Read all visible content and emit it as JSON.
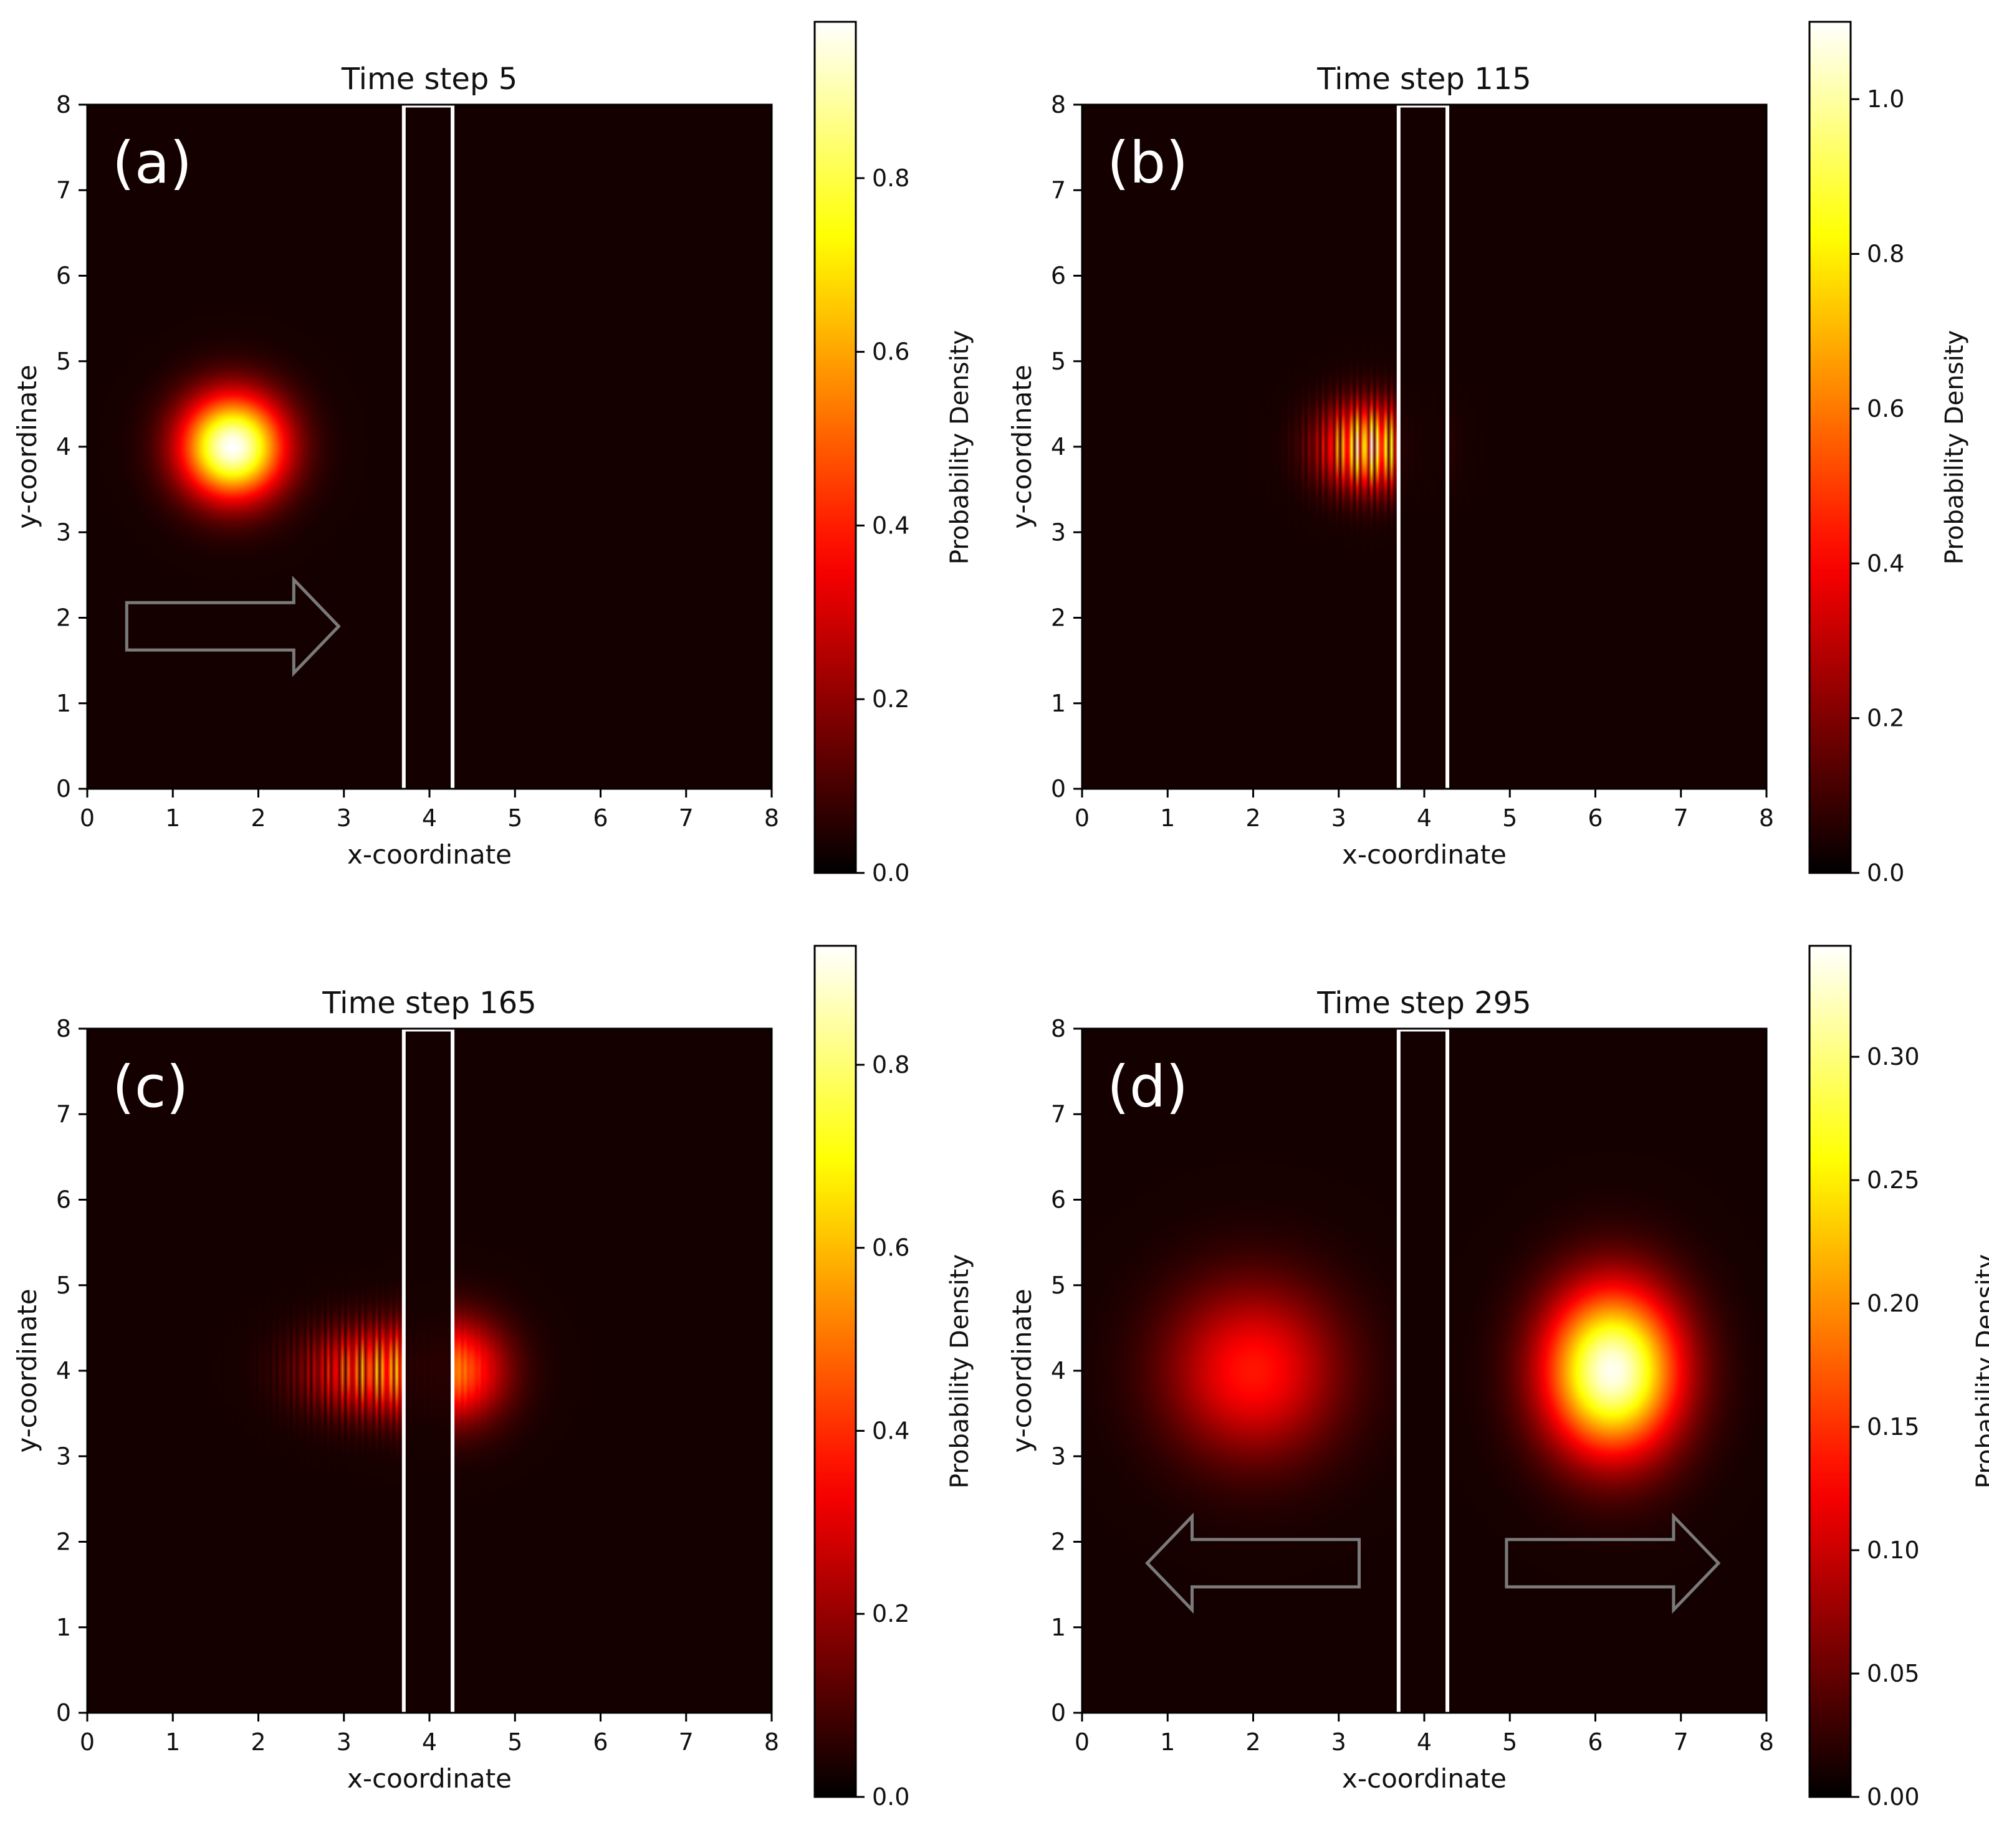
{
  "chart_data": [
    {
      "type": "heatmap",
      "panel_label": "(a)",
      "title": "Time step 5",
      "xlabel": "x-coordinate",
      "ylabel": "y-coordinate",
      "xlim": [
        0,
        8
      ],
      "ylim": [
        0,
        8
      ],
      "xticks": [
        0,
        1,
        2,
        3,
        4,
        5,
        6,
        7,
        8
      ],
      "yticks": [
        0,
        1,
        2,
        3,
        4,
        5,
        6,
        7,
        8
      ],
      "colormap": "hot",
      "colorbar": {
        "label": "Probability Density",
        "min": 0.0,
        "max": 0.98,
        "ticks": [
          "0.0",
          "0.2",
          "0.4",
          "0.6",
          "0.8"
        ]
      },
      "barrier_x": [
        3.7,
        4.27
      ],
      "wavepackets": [
        {
          "center_x": 1.7,
          "center_y": 4.0,
          "peak": 0.98,
          "sigma_x": 0.42,
          "sigma_y": 0.42,
          "fringes": "none"
        }
      ],
      "arrows": [
        "right"
      ]
    },
    {
      "type": "heatmap",
      "panel_label": "(b)",
      "title": "Time step 115",
      "xlabel": "x-coordinate",
      "ylabel": "y-coordinate",
      "xlim": [
        0,
        8
      ],
      "ylim": [
        0,
        8
      ],
      "xticks": [
        0,
        1,
        2,
        3,
        4,
        5,
        6,
        7,
        8
      ],
      "yticks": [
        0,
        1,
        2,
        3,
        4,
        5,
        6,
        7,
        8
      ],
      "colormap": "hot",
      "colorbar": {
        "label": "Probability Density",
        "min": 0.0,
        "max": 1.1,
        "ticks": [
          "0.0",
          "0.2",
          "0.4",
          "0.6",
          "0.8",
          "1.0"
        ]
      },
      "barrier_x": [
        3.7,
        4.27
      ],
      "wavepackets": [
        {
          "center_x": 3.35,
          "center_y": 4.0,
          "peak": 1.1,
          "sigma_x": 0.38,
          "sigma_y": 0.34,
          "fringes": "interference"
        }
      ],
      "arrows": []
    },
    {
      "type": "heatmap",
      "panel_label": "(c)",
      "title": "Time step 165",
      "xlabel": "x-coordinate",
      "ylabel": "y-coordinate",
      "xlim": [
        0,
        8
      ],
      "ylim": [
        0,
        8
      ],
      "xticks": [
        0,
        1,
        2,
        3,
        4,
        5,
        6,
        7,
        8
      ],
      "yticks": [
        0,
        1,
        2,
        3,
        4,
        5,
        6,
        7,
        8
      ],
      "colormap": "hot",
      "colorbar": {
        "label": "Probability Density",
        "min": 0.0,
        "max": 0.93,
        "ticks": [
          "0.0",
          "0.2",
          "0.4",
          "0.6",
          "0.8"
        ]
      },
      "barrier_x": [
        3.7,
        4.27
      ],
      "wavepackets": [
        {
          "center_x": 3.35,
          "center_y": 4.0,
          "peak": 0.6,
          "sigma_x": 0.55,
          "sigma_y": 0.35,
          "fringes": "interference"
        },
        {
          "center_x": 4.3,
          "center_y": 4.0,
          "peak": 0.42,
          "sigma_x": 0.42,
          "sigma_y": 0.42,
          "fringes": "none"
        }
      ],
      "arrows": []
    },
    {
      "type": "heatmap",
      "panel_label": "(d)",
      "title": "Time step 295",
      "xlabel": "x-coordinate",
      "ylabel": "y-coordinate",
      "xlim": [
        0,
        8
      ],
      "ylim": [
        0,
        8
      ],
      "xticks": [
        0,
        1,
        2,
        3,
        4,
        5,
        6,
        7,
        8
      ],
      "yticks": [
        0,
        1,
        2,
        3,
        4,
        5,
        6,
        7,
        8
      ],
      "colormap": "hot",
      "colorbar": {
        "label": "Probability Density",
        "min": 0.0,
        "max": 0.345,
        "ticks": [
          "0.00",
          "0.05",
          "0.10",
          "0.15",
          "0.20",
          "0.25",
          "0.30"
        ]
      },
      "barrier_x": [
        3.7,
        4.27
      ],
      "wavepackets": [
        {
          "center_x": 2.0,
          "center_y": 4.0,
          "peak": 0.13,
          "sigma_x": 0.7,
          "sigma_y": 0.7,
          "fringes": "none"
        },
        {
          "center_x": 6.2,
          "center_y": 4.0,
          "peak": 0.34,
          "sigma_x": 0.55,
          "sigma_y": 0.68,
          "fringes": "none"
        }
      ],
      "arrows": [
        "left",
        "right"
      ]
    }
  ]
}
